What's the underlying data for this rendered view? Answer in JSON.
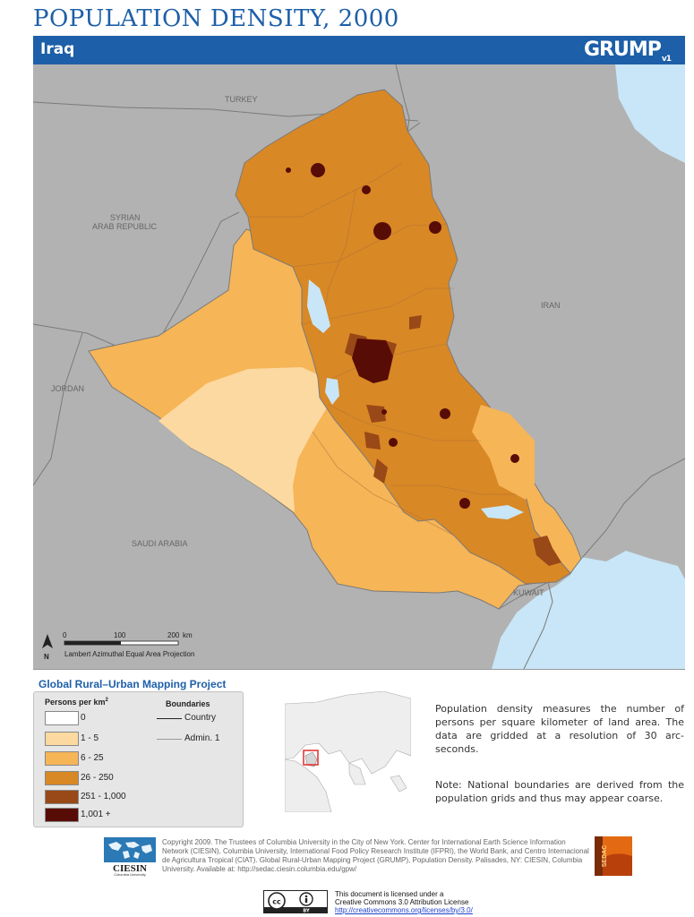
{
  "header": {
    "title": "POPULATION DENSITY, 2000",
    "country": "Iraq",
    "logo": "GRUMP",
    "logo_version": "v1"
  },
  "map": {
    "neighbors": [
      "TURKEY",
      "SYRIAN",
      "ARAB REPUBLIC",
      "IRAN",
      "JORDAN",
      "SAUDI ARABIA",
      "KUWAIT"
    ],
    "scale_bar": {
      "ticks": [
        "0",
        "100",
        "200"
      ],
      "unit": "km"
    },
    "north_label": "N",
    "projection": "Lambert Azimuthal Equal Area Projection",
    "colors": {
      "sea": "#c8e6f7",
      "other_land": "#b2b2b2",
      "border": "#7a7a7a"
    }
  },
  "project_title": "Global Rural–Urban Mapping Project",
  "legend": {
    "density_header": "Persons per km",
    "density_header_sup": "2",
    "classes": [
      {
        "label": "0",
        "color": "#ffffff"
      },
      {
        "label": "1 - 5",
        "color": "#fcd9a0"
      },
      {
        "label": "6 - 25",
        "color": "#f6b557"
      },
      {
        "label": "26 - 250",
        "color": "#d88825"
      },
      {
        "label": "251 - 1,000",
        "color": "#994817"
      },
      {
        "label": "1,001 +",
        "color": "#580c06"
      }
    ],
    "boundaries_header": "Boundaries",
    "boundaries": [
      {
        "label": "Country"
      },
      {
        "label": "Admin. 1"
      }
    ]
  },
  "description": {
    "main": "Population density measures the number of persons per square kilometer of land area. The data are gridded at a resolution of 30 arc-seconds.",
    "note": "Note: National boundaries are derived from the population grids and thus may appear coarse."
  },
  "footer": {
    "ciesin_name": "CIESIN",
    "ciesin_sub": "Columbia University",
    "copyright": "Copyright 2009. The Trustees of Columbia University in the City of New York. Center for International Earth Science Information Network (CIESIN), Columbia University, International Food Policy Research Institute (IFPRI), the World Bank, and Centro Internacional de Agricultura Tropical (CIAT). Global Rural-Urban Mapping Project (GRUMP), Population Density. Palisades, NY: CIESIN, Columbia University. Available at: http://sedac.ciesin.columbia.edu/gpw/",
    "sedac_label": "SEDAC",
    "cc_label": "cc",
    "cc_by": "BY",
    "license_line1": "This document is licensed under a",
    "license_line2": "Creative Commons 3.0 Attribution License",
    "license_url": "http://creativecommons.org/licenses/by/3.0/"
  }
}
